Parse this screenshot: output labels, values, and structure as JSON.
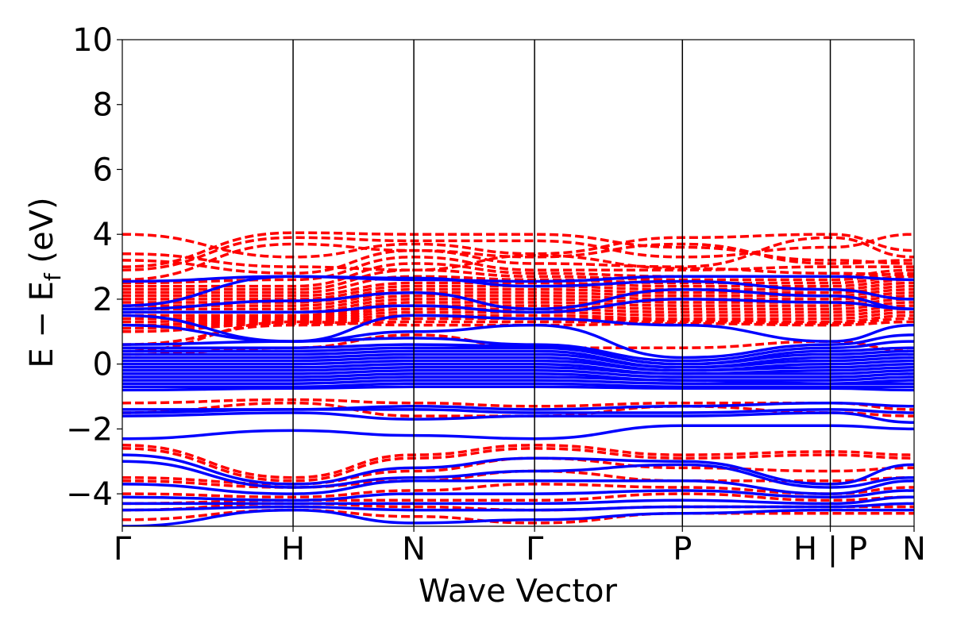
{
  "chart_data": {
    "type": "line",
    "title": "",
    "xlabel": "Wave Vector",
    "ylabel": {
      "prefix": "E − E",
      "subscript": "f",
      "suffix": " (eV)"
    },
    "ylim": [
      -5,
      10
    ],
    "yticks": [
      {
        "value": -4,
        "label": "−4"
      },
      {
        "value": -2,
        "label": "−2"
      },
      {
        "value": 0,
        "label": "0"
      },
      {
        "value": 2,
        "label": "2"
      },
      {
        "value": 4,
        "label": "4"
      },
      {
        "value": 6,
        "label": "6"
      },
      {
        "value": 8,
        "label": "8"
      },
      {
        "value": 10,
        "label": "10"
      }
    ],
    "kpath": [
      {
        "label": "Γ",
        "k": 0.0
      },
      {
        "label": "H",
        "k": 0.2157
      },
      {
        "label": "N",
        "k": 0.3682
      },
      {
        "label": "Γ",
        "k": 0.5207
      },
      {
        "label": "P",
        "k": 0.7074
      },
      {
        "label": "H | P",
        "k": 0.8942
      },
      {
        "label": "N",
        "k": 1.0
      }
    ],
    "grid": false,
    "legend": "none",
    "series": [
      {
        "style": "dashed",
        "color": "#ff0000",
        "bands": [
          [
            3.4,
            3.0,
            2.9,
            3.35,
            2.95,
            2.8,
            2.75
          ],
          [
            4.0,
            3.3,
            3.7,
            3.4,
            3.9,
            4.0,
            3.5
          ],
          [
            3.2,
            2.8,
            3.5,
            3.3,
            3.7,
            3.1,
            3.2
          ],
          [
            3.0,
            4.05,
            4.0,
            4.0,
            3.6,
            3.2,
            3.1
          ],
          [
            2.9,
            3.9,
            3.8,
            3.8,
            3.3,
            3.6,
            4.0
          ],
          [
            2.6,
            3.7,
            3.5,
            3.1,
            3.0,
            3.9,
            3.3
          ],
          [
            2.5,
            2.6,
            3.3,
            2.9,
            2.9,
            3.0,
            3.0
          ],
          [
            2.4,
            2.4,
            3.1,
            2.8,
            2.7,
            2.7,
            2.9
          ],
          [
            2.3,
            2.3,
            2.9,
            2.7,
            2.6,
            2.6,
            2.8
          ],
          [
            2.2,
            2.2,
            2.7,
            2.6,
            2.5,
            2.5,
            2.7
          ],
          [
            2.1,
            2.1,
            2.5,
            2.5,
            2.4,
            2.4,
            2.6
          ],
          [
            2.0,
            2.0,
            2.4,
            2.4,
            2.3,
            2.3,
            2.5
          ],
          [
            1.9,
            1.9,
            2.3,
            2.3,
            2.2,
            2.2,
            2.4
          ],
          [
            1.8,
            1.8,
            2.2,
            2.2,
            2.1,
            2.1,
            2.3
          ],
          [
            1.7,
            1.7,
            2.1,
            2.1,
            2.0,
            2.0,
            2.2
          ],
          [
            1.6,
            1.6,
            2.0,
            2.0,
            1.9,
            1.9,
            2.1
          ],
          [
            1.5,
            1.5,
            1.9,
            1.9,
            1.8,
            1.8,
            2.0
          ],
          [
            1.4,
            1.45,
            1.8,
            1.8,
            1.7,
            1.7,
            1.9
          ],
          [
            1.3,
            1.4,
            1.7,
            1.7,
            1.6,
            1.6,
            1.8
          ],
          [
            1.2,
            1.35,
            1.6,
            1.6,
            1.5,
            1.5,
            1.7
          ],
          [
            1.1,
            1.3,
            1.5,
            1.5,
            1.4,
            1.4,
            1.6
          ],
          [
            1.0,
            1.25,
            1.4,
            1.4,
            1.35,
            1.3,
            1.5
          ],
          [
            0.6,
            1.2,
            1.3,
            1.3,
            1.3,
            1.25,
            1.4
          ],
          [
            0.4,
            1.3,
            1.2,
            1.2,
            1.25,
            1.2,
            1.3
          ],
          [
            0.3,
            0.5,
            0.9,
            0.5,
            0.5,
            0.7,
            0.4
          ],
          [
            -1.5,
            -1.2,
            -1.6,
            -1.6,
            -1.3,
            -1.5,
            -1.6
          ],
          [
            -1.2,
            -1.1,
            -1.2,
            -1.3,
            -1.2,
            -1.2,
            -1.4
          ],
          [
            -2.5,
            -3.5,
            -2.8,
            -2.5,
            -2.8,
            -2.7,
            -2.8
          ],
          [
            -2.6,
            -3.6,
            -2.9,
            -2.6,
            -2.9,
            -2.8,
            -2.9
          ],
          [
            -3.5,
            -3.7,
            -3.3,
            -2.9,
            -3.2,
            -3.3,
            -3.2
          ],
          [
            -3.6,
            -3.8,
            -3.6,
            -3.3,
            -3.6,
            -3.6,
            -3.5
          ],
          [
            -4.0,
            -4.1,
            -3.9,
            -3.7,
            -3.8,
            -4.0,
            -3.8
          ],
          [
            -4.3,
            -4.2,
            -4.2,
            -4.2,
            -4.0,
            -4.2,
            -4.1
          ],
          [
            -4.5,
            -4.3,
            -4.4,
            -4.5,
            -4.4,
            -4.4,
            -4.4
          ],
          [
            -4.8,
            -4.5,
            -4.7,
            -4.9,
            -4.6,
            -4.6,
            -4.6
          ]
        ]
      },
      {
        "style": "solid",
        "color": "#0000ff",
        "bands": [
          [
            2.55,
            2.7,
            2.6,
            2.55,
            2.7,
            2.7,
            2.6
          ],
          [
            1.8,
            2.7,
            2.65,
            2.4,
            2.55,
            2.3,
            2.0
          ],
          [
            1.7,
            1.95,
            2.2,
            1.7,
            2.3,
            2.1,
            1.7
          ],
          [
            1.6,
            1.6,
            1.8,
            1.6,
            2.0,
            1.9,
            1.7
          ],
          [
            1.5,
            0.7,
            1.5,
            1.4,
            1.2,
            0.7,
            1.2
          ],
          [
            1.2,
            0.7,
            1.0,
            1.2,
            0.2,
            0.6,
            0.9
          ],
          [
            0.6,
            0.7,
            0.8,
            0.6,
            0.1,
            0.5,
            0.7
          ],
          [
            0.5,
            0.5,
            0.6,
            0.55,
            0.0,
            0.4,
            0.5
          ],
          [
            0.4,
            0.4,
            0.5,
            0.5,
            0.0,
            0.3,
            0.4
          ],
          [
            0.3,
            0.3,
            0.4,
            0.4,
            -0.1,
            0.2,
            0.3
          ],
          [
            0.2,
            0.2,
            0.3,
            0.3,
            -0.1,
            0.1,
            0.2
          ],
          [
            0.1,
            0.1,
            0.2,
            0.2,
            -0.2,
            0.0,
            0.1
          ],
          [
            0.0,
            0.0,
            0.1,
            0.1,
            -0.2,
            -0.1,
            0.0
          ],
          [
            -0.1,
            -0.1,
            0.0,
            0.0,
            -0.3,
            -0.2,
            -0.1
          ],
          [
            -0.2,
            -0.2,
            -0.1,
            -0.1,
            -0.3,
            -0.3,
            -0.2
          ],
          [
            -0.3,
            -0.3,
            -0.2,
            -0.2,
            -0.4,
            -0.4,
            -0.3
          ],
          [
            -0.4,
            -0.4,
            -0.3,
            -0.3,
            -0.5,
            -0.5,
            -0.4
          ],
          [
            -0.5,
            -0.5,
            -0.4,
            -0.4,
            -0.5,
            -0.6,
            -0.5
          ],
          [
            -0.6,
            -0.6,
            -0.5,
            -0.5,
            -0.6,
            -0.6,
            -0.6
          ],
          [
            -0.7,
            -0.7,
            -0.6,
            -0.6,
            -0.7,
            -0.7,
            -0.7
          ],
          [
            -0.8,
            -0.75,
            -0.7,
            -0.7,
            -0.75,
            -0.75,
            -0.8
          ],
          [
            -1.4,
            -1.4,
            -1.3,
            -1.4,
            -1.3,
            -1.2,
            -1.3
          ],
          [
            -1.5,
            -1.4,
            -1.4,
            -1.5,
            -1.5,
            -1.4,
            -1.5
          ],
          [
            -1.6,
            -1.5,
            -1.7,
            -1.6,
            -1.6,
            -1.5,
            -1.8
          ],
          [
            -2.3,
            -2.05,
            -2.2,
            -2.3,
            -1.9,
            -1.9,
            -2.0
          ],
          [
            -2.8,
            -3.7,
            -3.2,
            -2.9,
            -3.0,
            -3.7,
            -3.1
          ],
          [
            -3.0,
            -3.8,
            -3.5,
            -3.3,
            -3.1,
            -3.8,
            -3.5
          ],
          [
            -3.7,
            -4.0,
            -3.6,
            -3.6,
            -3.6,
            -4.0,
            -3.6
          ],
          [
            -4.1,
            -4.2,
            -4.0,
            -4.0,
            -3.9,
            -4.1,
            -3.9
          ],
          [
            -4.3,
            -4.3,
            -4.3,
            -4.3,
            -4.2,
            -4.3,
            -4.1
          ],
          [
            -4.5,
            -4.4,
            -4.5,
            -4.5,
            -4.4,
            -4.4,
            -4.3
          ],
          [
            -5.0,
            -4.5,
            -4.9,
            -4.8,
            -4.6,
            -4.5,
            -4.5
          ]
        ]
      }
    ]
  }
}
